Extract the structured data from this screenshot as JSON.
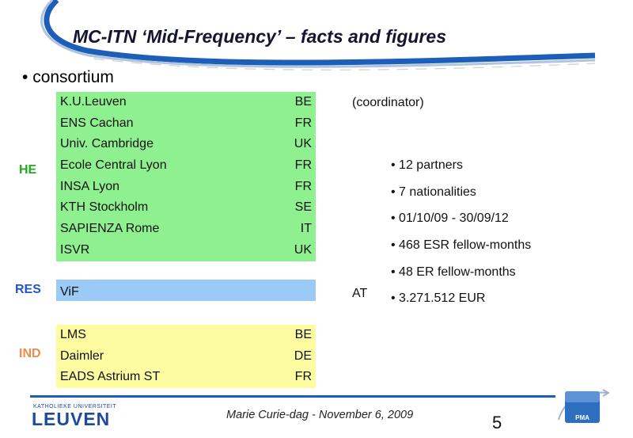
{
  "slide": {
    "title": "MC-ITN ‘Mid-Frequency’ – facts and figures",
    "main_bullet": "consortium",
    "page_number": "5",
    "footer": "Marie Curie-dag - November 6, 2009"
  },
  "groups": {
    "he": {
      "label": "HE",
      "color": "#22aa22",
      "rows": [
        {
          "name": "K.U.Leuven",
          "country": "BE"
        },
        {
          "name": "ENS Cachan",
          "country": "FR"
        },
        {
          "name": "Univ. Cambridge",
          "country": "UK"
        },
        {
          "name": "Ecole Central Lyon",
          "country": "FR"
        },
        {
          "name": "INSA Lyon",
          "country": "FR"
        },
        {
          "name": "KTH Stockholm",
          "country": "SE"
        },
        {
          "name": "SAPIENZA Rome",
          "country": "IT"
        },
        {
          "name": "ISVR",
          "country": "UK"
        }
      ]
    },
    "res": {
      "label": "RES",
      "color": "#2255cc",
      "rows": [
        {
          "name": "ViF",
          "country": ""
        }
      ]
    },
    "ind": {
      "label": "IND",
      "color": "#f08a4a",
      "rows": [
        {
          "name": "LMS",
          "country": "BE"
        },
        {
          "name": "Daimler",
          "country": "DE"
        },
        {
          "name": "EADS Astrium ST",
          "country": "FR"
        }
      ]
    }
  },
  "side_notes": {
    "coordinator": "(coordinator)",
    "res_country": "AT"
  },
  "facts": [
    "12 partners",
    "7 nationalities",
    "01/10/09 - 30/09/12",
    "468 ESR fellow-months",
    "48 ER fellow-months",
    "3.271.512 EUR"
  ],
  "logos": {
    "leuven_small": "KATHOLIEKE UNIVERSITEIT",
    "leuven_big": "LEUVEN",
    "pma": "PMA"
  },
  "colors": {
    "he_fill": "#8ef08e",
    "res_fill": "#9ccaf6",
    "ind_fill": "#fdfca0",
    "accent_blue": "#1d5fb8"
  }
}
